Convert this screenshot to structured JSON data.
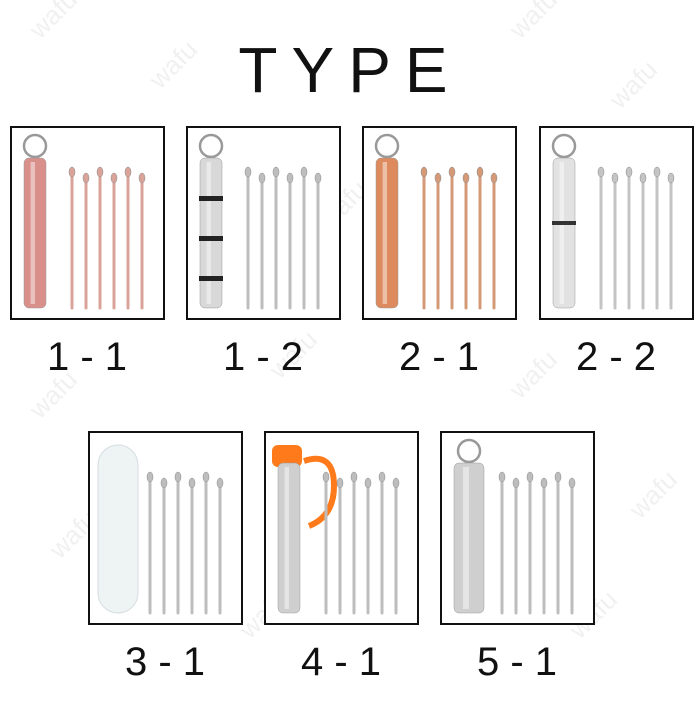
{
  "title": "TYPE",
  "watermark": "wafu",
  "types": [
    {
      "label": "1 - 1"
    },
    {
      "label": "1 - 2"
    },
    {
      "label": "2 - 1"
    },
    {
      "label": "2 - 2"
    },
    {
      "label": "3 - 1"
    },
    {
      "label": "4 - 1"
    },
    {
      "label": "5 - 1"
    }
  ]
}
